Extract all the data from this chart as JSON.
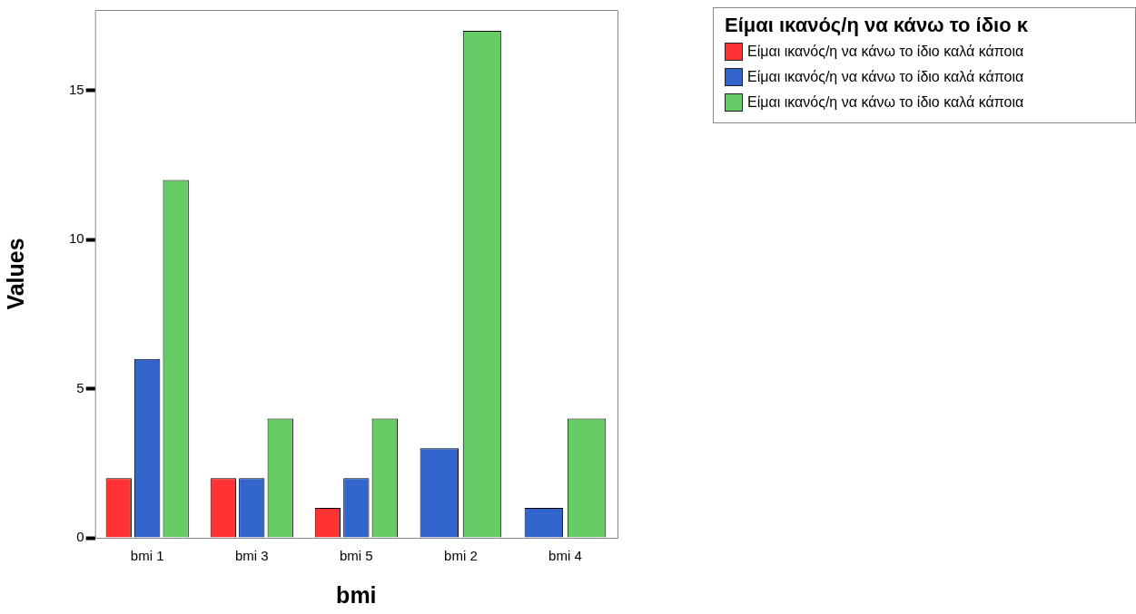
{
  "chart_data": {
    "type": "bar",
    "xlabel": "bmi",
    "ylabel": "Values",
    "legend_title": "Είμαι ικανός/η να κάνω το ίδιο κ",
    "legend": "top right",
    "grid": false,
    "categories": [
      "bmi 1",
      "bmi 3",
      "bmi 5",
      "bmi 2",
      "bmi 4"
    ],
    "ylim": [
      0,
      17.7
    ],
    "yticks": [
      0,
      5,
      10,
      15
    ],
    "series": [
      {
        "name": "Είμαι ικανός/η να κάνω το ίδιο καλά κάποια",
        "color": "#ff3333",
        "values": [
          2,
          2,
          1,
          null,
          null
        ]
      },
      {
        "name": "Είμαι ικανός/η να κάνω το ίδιο καλά κάποια",
        "color": "#3366cc",
        "values": [
          6,
          2,
          2,
          3,
          1
        ]
      },
      {
        "name": "Είμαι ικανός/η να κάνω το ίδιο καλά κάποια",
        "color": "#66cc66",
        "values": [
          12,
          4,
          4,
          17,
          4
        ]
      }
    ]
  }
}
